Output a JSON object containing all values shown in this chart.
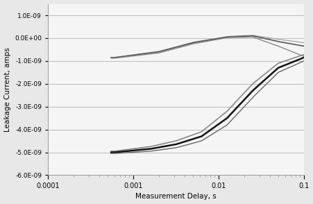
{
  "title": "",
  "xlabel": "Measurement Delay, s",
  "ylabel": "Leakage Current, amps",
  "xlim": [
    0.0001,
    0.1
  ],
  "ylim": [
    -6e-09,
    1.5e-09
  ],
  "yticks": [
    1e-09,
    0.0,
    -1e-09,
    -2e-09,
    -3e-09,
    -4e-09,
    -5e-09,
    -6e-09
  ],
  "ytick_labels": [
    "1.0E-09",
    "0.0E+00",
    "-1.0E-09",
    "-2.0E-09",
    "-3.0E-09",
    "-4.0E-09",
    "-5.0E-09",
    "-6.0E-09"
  ],
  "xticks": [
    0.0001,
    0.001,
    0.01,
    0.1
  ],
  "xtick_labels": [
    "0.0001",
    "0.001",
    "0.01",
    "0.1"
  ],
  "background_color": "#e8e8e8",
  "plot_bg_color": "#f5f5f5",
  "grid_color": "#bbbbbb",
  "upper_curves": {
    "xlog_pts": [
      -3.22,
      -2.7,
      -2.3,
      -1.9,
      -1.6,
      -1.3,
      -1.0
    ],
    "y1": [
      -8.5e-10,
      -6e-10,
      -2e-10,
      5e-11,
      1e-10,
      -1.5e-10,
      -3.5e-10
    ],
    "y2": [
      -8.5e-10,
      -5.8e-10,
      -1.8e-10,
      7e-11,
      1.2e-10,
      -5e-11,
      -2e-10
    ],
    "y3": [
      -8.8e-10,
      -6.5e-10,
      -2.5e-10,
      2e-11,
      5e-11,
      -3.5e-10,
      -8e-10
    ]
  },
  "lower_curves": {
    "xlog_pts": [
      -3.22,
      -2.8,
      -2.5,
      -2.2,
      -1.9,
      -1.6,
      -1.3,
      -1.0
    ],
    "y1": [
      -5e-09,
      -4.85e-09,
      -4.65e-09,
      -4.3e-09,
      -3.5e-09,
      -2.3e-09,
      -1.3e-09,
      -8.5e-10
    ],
    "y2": [
      -4.95e-09,
      -4.75e-09,
      -4.5e-09,
      -4.1e-09,
      -3.2e-09,
      -2e-09,
      -1.1e-09,
      -7.2e-10
    ],
    "y3": [
      -5.05e-09,
      -4.95e-09,
      -4.8e-09,
      -4.5e-09,
      -3.8e-09,
      -2.6e-09,
      -1.5e-09,
      -1e-09
    ]
  }
}
